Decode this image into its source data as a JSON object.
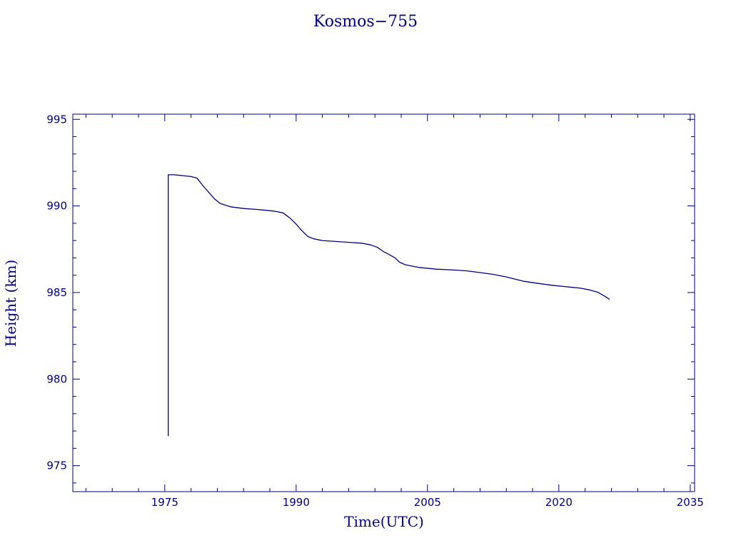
{
  "chart_data": {
    "type": "line",
    "title": "Kosmos−755",
    "xlabel": "Time(UTC)",
    "ylabel": "Height (km)",
    "xlim": [
      1964.5,
      2035.5
    ],
    "ylim": [
      973.5,
      995.3
    ],
    "xticks": [
      1975,
      1990,
      2005,
      2020,
      2035
    ],
    "xtick_labels": [
      "1975",
      "1990",
      "2005",
      "2020",
      "2035"
    ],
    "yticks": [
      975,
      980,
      985,
      990,
      995
    ],
    "ytick_labels": [
      "975",
      "980",
      "985",
      "990",
      "995"
    ],
    "x_minor_step": 3,
    "y_minor_step": 1,
    "grid": false,
    "color": "#000080",
    "series": [
      {
        "name": "",
        "x": [
          1975.4,
          1975.4,
          1976.0,
          1977.0,
          1978.0,
          1978.7,
          1979.3,
          1980.0,
          1980.7,
          1981.3,
          1982.5,
          1984.0,
          1985.5,
          1986.5,
          1987.5,
          1988.5,
          1989.3,
          1990.0,
          1990.6,
          1991.3,
          1992.0,
          1993.0,
          1994.5,
          1996.0,
          1997.5,
          1998.5,
          1999.3,
          2000.0,
          2000.6,
          2001.3,
          2001.8,
          2002.5,
          2004.0,
          2006.0,
          2008.0,
          2009.5,
          2011.0,
          2012.5,
          2014.0,
          2016.0,
          2018.0,
          2019.5,
          2020.5,
          2021.5,
          2022.5,
          2023.5,
          2024.5,
          2025.2,
          2025.8
        ],
        "y": [
          976.7,
          991.8,
          991.8,
          991.75,
          991.7,
          991.6,
          991.2,
          990.8,
          990.4,
          990.15,
          989.95,
          989.85,
          989.8,
          989.75,
          989.7,
          989.6,
          989.3,
          988.95,
          988.6,
          988.25,
          988.1,
          988.0,
          987.95,
          987.9,
          987.85,
          987.75,
          987.6,
          987.35,
          987.2,
          987.0,
          986.75,
          986.6,
          986.45,
          986.35,
          986.3,
          986.25,
          986.15,
          986.05,
          985.9,
          985.65,
          985.5,
          985.4,
          985.35,
          985.3,
          985.25,
          985.15,
          985.0,
          984.8,
          984.6
        ]
      }
    ]
  }
}
